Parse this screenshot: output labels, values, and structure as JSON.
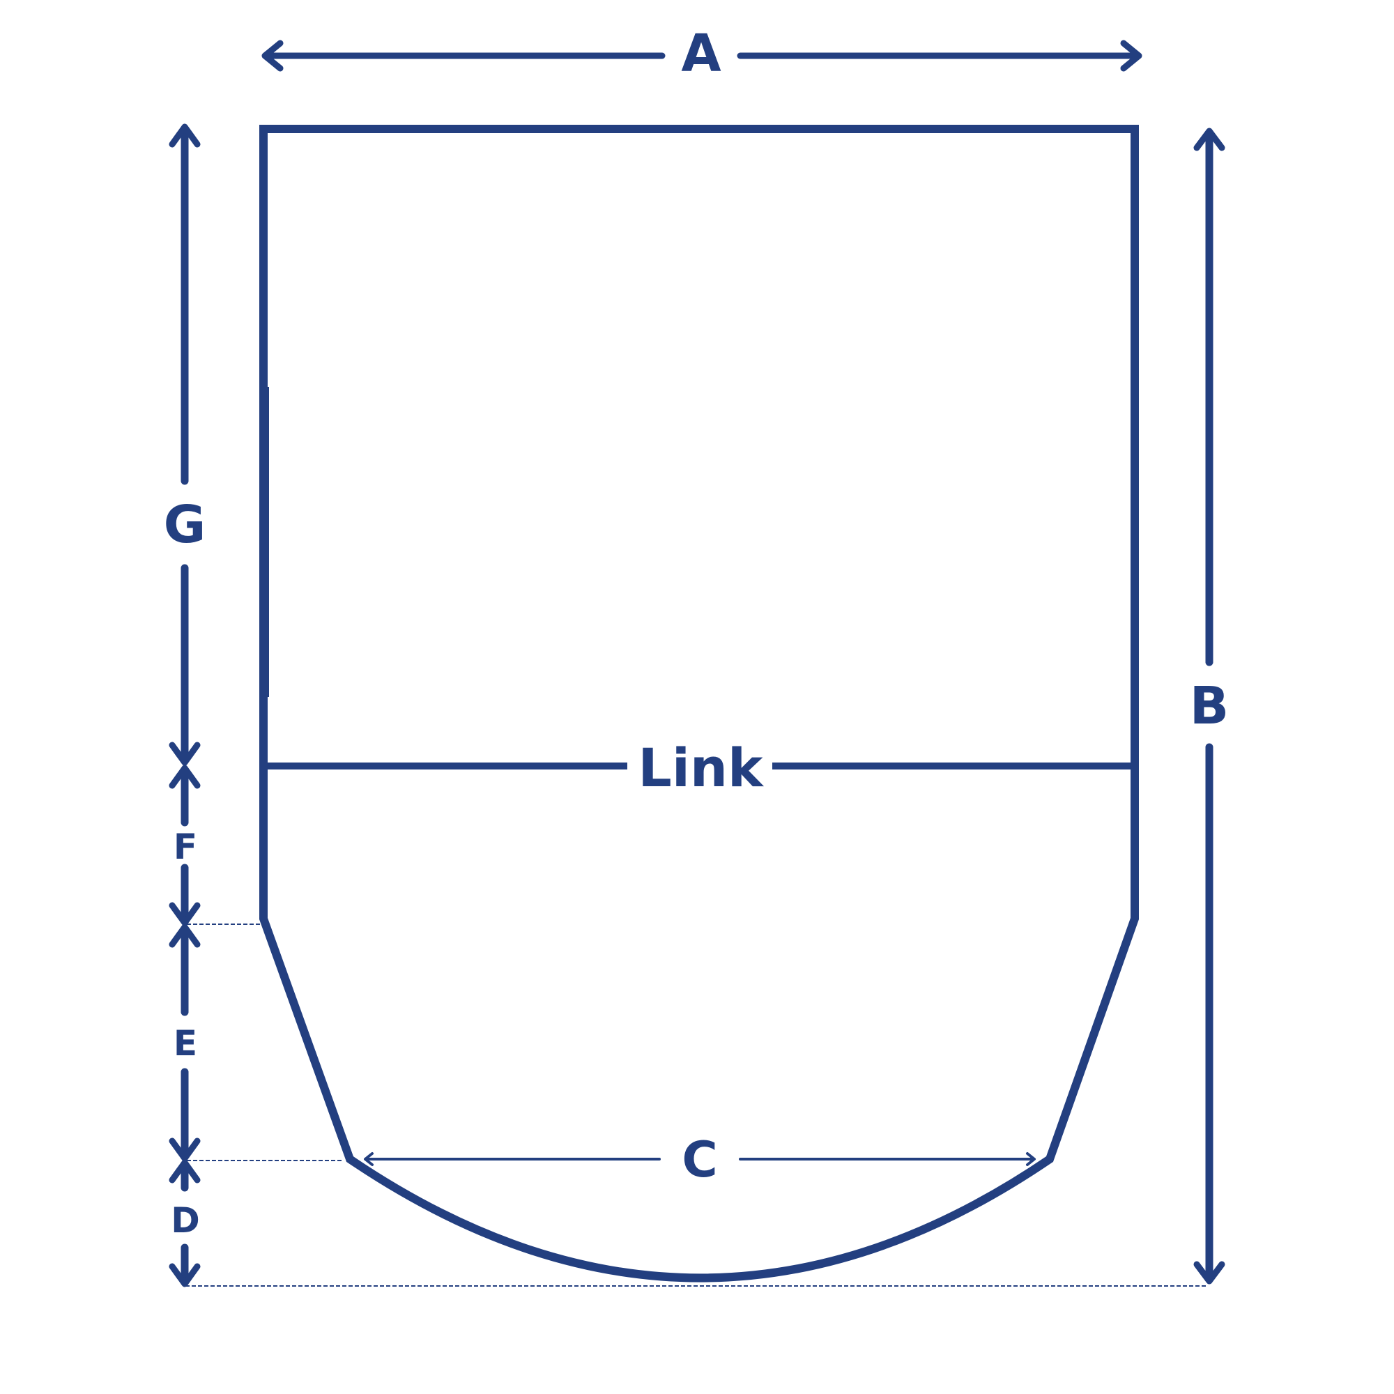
{
  "colors": {
    "stroke": "#233F80",
    "background": "#FFFFFF"
  },
  "labels": {
    "a": "A",
    "b": "B",
    "c": "C",
    "d": "D",
    "e": "E",
    "f": "F",
    "g": "G",
    "link": "Link"
  }
}
